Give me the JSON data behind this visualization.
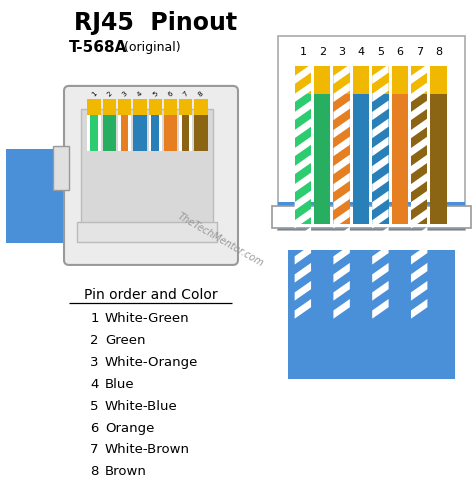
{
  "title": "RJ45  Pinout",
  "subtitle_bold": "T-568A",
  "subtitle_normal": " (original)",
  "watermark": "TheTechMentor.com",
  "bg_color": "#ffffff",
  "pin_header": "Pin order and Color",
  "pins": [
    {
      "num": 1,
      "label": "White-Green"
    },
    {
      "num": 2,
      "label": "Green"
    },
    {
      "num": 3,
      "label": "White-Orange"
    },
    {
      "num": 4,
      "label": "Blue"
    },
    {
      "num": 5,
      "label": "White-Blue"
    },
    {
      "num": 6,
      "label": "Orange"
    },
    {
      "num": 7,
      "label": "White-Brown"
    },
    {
      "num": 8,
      "label": "Brown"
    }
  ],
  "wire_colors": [
    {
      "main": "#2ecc71",
      "striped": true
    },
    {
      "main": "#27ae60",
      "striped": false
    },
    {
      "main": "#e67e22",
      "striped": true
    },
    {
      "main": "#2980b9",
      "striped": false
    },
    {
      "main": "#2980b9",
      "striped": true
    },
    {
      "main": "#e67e22",
      "striped": false
    },
    {
      "main": "#8B6513",
      "striped": true
    },
    {
      "main": "#8B6513",
      "striped": false
    }
  ],
  "cable_color": "#4a90d9",
  "pin_numbers": [
    "1",
    "2",
    "3",
    "4",
    "5",
    "6",
    "7",
    "8"
  ],
  "yellow_top": "#f0b800"
}
